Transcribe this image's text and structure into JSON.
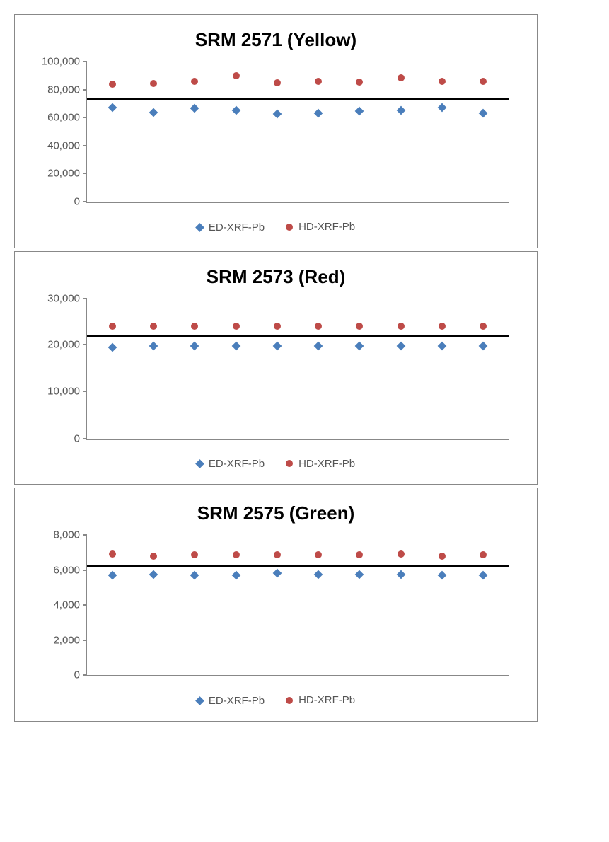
{
  "charts": [
    {
      "title": "SRM 2571 (Yellow)",
      "type": "scatter",
      "ylim": [
        0,
        100000
      ],
      "ytick_step": 20000,
      "yticks": [
        0,
        20000,
        40000,
        60000,
        80000,
        100000
      ],
      "ytick_labels": [
        "0",
        "20,000",
        "40,000",
        "60,000",
        "80,000",
        "100,000"
      ],
      "refline_value": 73000,
      "refline_color": "#000000",
      "refline_width": 3,
      "x_count": 10,
      "series": [
        {
          "name": "ED-XRF-Pb",
          "marker": "diamond",
          "color": "#4a7ebb",
          "size": 9,
          "values": [
            67000,
            63500,
            66500,
            65000,
            62500,
            63000,
            64500,
            65000,
            67000,
            63000
          ]
        },
        {
          "name": "HD-XRF-Pb",
          "marker": "circle",
          "color": "#be4b48",
          "size": 10,
          "values": [
            84000,
            84500,
            86000,
            90000,
            85000,
            86000,
            85500,
            88500,
            86000,
            86000
          ]
        }
      ],
      "background_color": "#ffffff",
      "axis_color": "#888888",
      "tick_font_size": 15,
      "title_font_size": 26,
      "title_font_weight": "bold"
    },
    {
      "title": "SRM 2573 (Red)",
      "type": "scatter",
      "ylim": [
        0,
        30000
      ],
      "ytick_step": 10000,
      "yticks": [
        0,
        10000,
        20000,
        30000
      ],
      "ytick_labels": [
        "0",
        "10,000",
        "20,000",
        "30,000"
      ],
      "refline_value": 22000,
      "refline_color": "#000000",
      "refline_width": 3,
      "x_count": 10,
      "series": [
        {
          "name": "ED-XRF-Pb",
          "marker": "diamond",
          "color": "#4a7ebb",
          "size": 9,
          "values": [
            19500,
            19700,
            19700,
            19700,
            19700,
            19700,
            19700,
            19700,
            19700,
            19700
          ]
        },
        {
          "name": "HD-XRF-Pb",
          "marker": "circle",
          "color": "#be4b48",
          "size": 10,
          "values": [
            24000,
            24000,
            24000,
            24000,
            24000,
            24000,
            24000,
            24000,
            24000,
            24000
          ]
        }
      ],
      "background_color": "#ffffff",
      "axis_color": "#888888",
      "tick_font_size": 15,
      "title_font_size": 26,
      "title_font_weight": "bold"
    },
    {
      "title": "SRM 2575 (Green)",
      "type": "scatter",
      "ylim": [
        0,
        8000
      ],
      "ytick_step": 2000,
      "yticks": [
        0,
        2000,
        4000,
        6000,
        8000
      ],
      "ytick_labels": [
        "0",
        "2,000",
        "4,000",
        "6,000",
        "8,000"
      ],
      "refline_value": 6250,
      "refline_color": "#000000",
      "refline_width": 3,
      "x_count": 10,
      "series": [
        {
          "name": "ED-XRF-Pb",
          "marker": "diamond",
          "color": "#4a7ebb",
          "size": 9,
          "values": [
            5700,
            5750,
            5700,
            5700,
            5800,
            5750,
            5750,
            5750,
            5700,
            5700
          ]
        },
        {
          "name": "HD-XRF-Pb",
          "marker": "circle",
          "color": "#be4b48",
          "size": 10,
          "values": [
            6900,
            6800,
            6850,
            6850,
            6850,
            6850,
            6850,
            6900,
            6800,
            6850
          ]
        }
      ],
      "background_color": "#ffffff",
      "axis_color": "#888888",
      "tick_font_size": 15,
      "title_font_size": 26,
      "title_font_weight": "bold"
    }
  ],
  "legend": {
    "items": [
      {
        "label": "ED-XRF-Pb",
        "marker": "diamond",
        "color": "#4a7ebb"
      },
      {
        "label": "HD-XRF-Pb",
        "marker": "circle",
        "color": "#be4b48"
      }
    ],
    "font_size": 15,
    "text_color": "#555555"
  }
}
